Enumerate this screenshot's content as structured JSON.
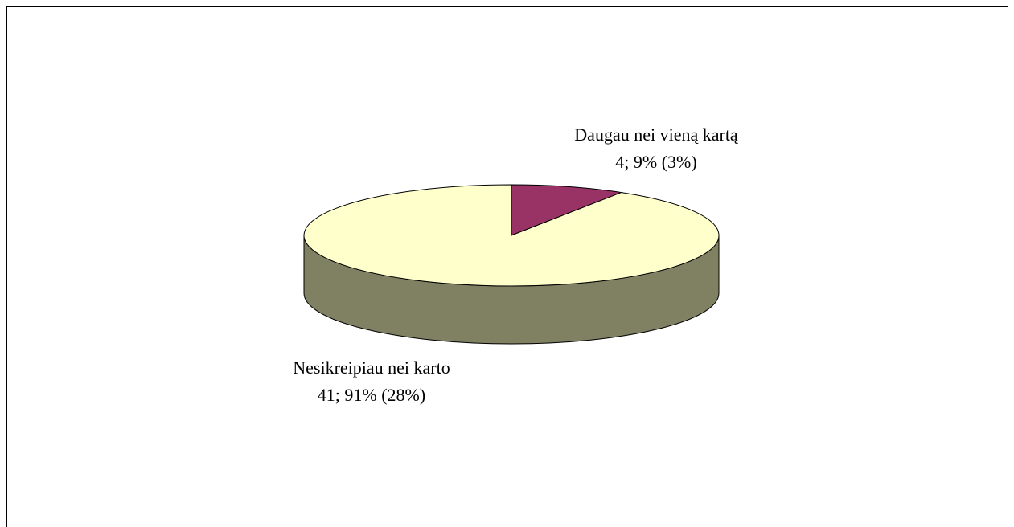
{
  "chart_data": {
    "type": "pie",
    "categories": [
      "Daugau nei vieną kartą",
      "Nesikreipiau nei karto"
    ],
    "values": [
      4,
      41
    ],
    "value_labels": [
      "4; 9% (3%)",
      "41; 91% (28%)"
    ],
    "colors": [
      "#993366",
      "#ffffcc"
    ],
    "side_color": "#808062"
  }
}
